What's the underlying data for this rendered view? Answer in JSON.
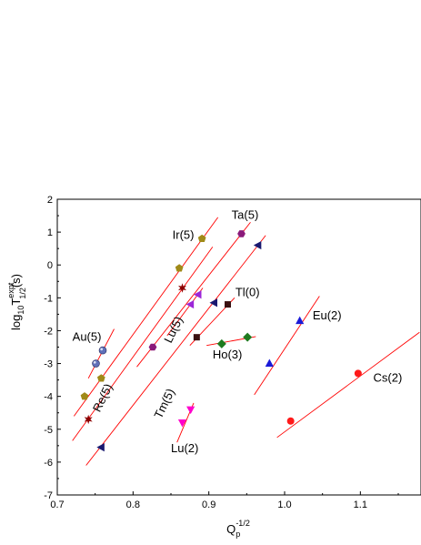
{
  "chart_data": {
    "type": "scatter",
    "title": "",
    "xlabel": {
      "base": "Q",
      "sub": "p",
      "sup": "-1/2"
    },
    "ylabel": {
      "pre": "log",
      "pre_sub": "10",
      "main": "T",
      "sup": "expt",
      "sub": "1/2",
      "post": "(s)"
    },
    "xlim": [
      0.7,
      1.18
    ],
    "ylim": [
      -7,
      2
    ],
    "xticks": [
      "0.7",
      "0.8",
      "0.9",
      "1.0",
      "1.1"
    ],
    "xtick_values": [
      0.7,
      0.8,
      0.9,
      1.0,
      1.1
    ],
    "yticks": [
      "-7",
      "-6",
      "-5",
      "-4",
      "-3",
      "-2",
      "-1",
      "0",
      "1",
      "2"
    ],
    "ytick_values": [
      -7,
      -6,
      -5,
      -4,
      -3,
      -2,
      -1,
      0,
      1,
      2
    ],
    "grid": false,
    "legend": "none",
    "line_color": "#ff0000",
    "series": [
      {
        "name": "Au(5)",
        "marker": "sphere",
        "color": "#6070b8",
        "points": [
          [
            0.751,
            -3.0
          ],
          [
            0.76,
            -2.6
          ]
        ],
        "fit": [
          [
            0.741,
            -3.45
          ],
          [
            0.775,
            -1.95
          ]
        ]
      },
      {
        "name": "Ir(5)",
        "marker": "pentagon",
        "color": "#a08a18",
        "points": [
          [
            0.736,
            -4.0
          ],
          [
            0.758,
            -3.45
          ],
          [
            0.861,
            -0.1
          ],
          [
            0.891,
            0.8
          ]
        ],
        "fit": [
          [
            0.722,
            -4.6
          ],
          [
            0.912,
            1.45
          ]
        ]
      },
      {
        "name": "Ta(5)",
        "marker": "hexagon",
        "color": "#8a1a7a",
        "points": [
          [
            0.826,
            -2.5
          ],
          [
            0.943,
            0.95
          ]
        ],
        "fit": [
          [
            0.805,
            -3.1
          ],
          [
            0.955,
            1.3
          ]
        ]
      },
      {
        "name": "Re(5)",
        "marker": "star",
        "color": "#8b0000",
        "points": [
          [
            0.741,
            -4.7
          ],
          [
            0.865,
            -0.7
          ]
        ],
        "fit": [
          [
            0.72,
            -5.35
          ],
          [
            0.905,
            0.55
          ]
        ]
      },
      {
        "name": "Lu(5)",
        "marker": "triangle-left",
        "color": "#191970",
        "points": [
          [
            0.758,
            -5.55
          ],
          [
            0.907,
            -1.15
          ],
          [
            0.965,
            0.6
          ]
        ],
        "fit": [
          [
            0.738,
            -6.1
          ],
          [
            0.975,
            0.9
          ]
        ]
      },
      {
        "name": "Tm(5)",
        "marker": "triangle-left",
        "color": "#9c27d8",
        "points": [
          [
            0.876,
            -1.2
          ],
          [
            0.886,
            -0.9
          ]
        ],
        "fit": [
          [
            0.845,
            -2.15
          ],
          [
            0.892,
            -0.7
          ]
        ]
      },
      {
        "name": "Tl(0)",
        "marker": "square",
        "color": "#3a1010",
        "points": [
          [
            0.884,
            -2.2
          ],
          [
            0.925,
            -1.2
          ]
        ],
        "fit": [
          [
            0.875,
            -2.45
          ],
          [
            0.934,
            -1.0
          ]
        ]
      },
      {
        "name": "Ho(3)",
        "marker": "diamond",
        "color": "#1f7a1f",
        "points": [
          [
            0.917,
            -2.4
          ],
          [
            0.951,
            -2.2
          ]
        ],
        "fit": [
          [
            0.897,
            -2.45
          ],
          [
            0.962,
            -2.18
          ]
        ]
      },
      {
        "name": "Eu(2)",
        "marker": "triangle-up",
        "color": "#1a1ad8",
        "points": [
          [
            0.98,
            -3.0
          ],
          [
            1.02,
            -1.7
          ]
        ],
        "fit": [
          [
            0.96,
            -3.95
          ],
          [
            1.046,
            -0.95
          ]
        ]
      },
      {
        "name": "Cs(2)",
        "marker": "circle",
        "color": "#ff1a1a",
        "points": [
          [
            1.008,
            -4.75
          ],
          [
            1.097,
            -3.3
          ]
        ],
        "fit": [
          [
            0.99,
            -5.25
          ],
          [
            1.178,
            -2.05
          ]
        ]
      },
      {
        "name": "Lu(2)",
        "marker": "triangle-down",
        "color": "#ff00cc",
        "points": [
          [
            0.865,
            -4.8
          ],
          [
            0.876,
            -4.4
          ]
        ],
        "fit": [
          [
            0.858,
            -5.4
          ],
          [
            0.88,
            -4.2
          ]
        ]
      }
    ],
    "annotations": [
      {
        "text": "Au(5)",
        "x": 0.72,
        "y": -2.3,
        "rotate": 0
      },
      {
        "text": "Ir(5)",
        "x": 0.852,
        "y": 0.8,
        "rotate": 0
      },
      {
        "text": "Ta(5)",
        "x": 0.93,
        "y": 1.4,
        "rotate": 0
      },
      {
        "text": "Re(5)",
        "x": 0.756,
        "y": -4.5,
        "rotate": -64
      },
      {
        "text": "Lu(5)",
        "x": 0.85,
        "y": -2.4,
        "rotate": -64
      },
      {
        "text": "Tm(5)",
        "x": 0.837,
        "y": -4.7,
        "rotate": -64
      },
      {
        "text": "Tl(0)",
        "x": 0.935,
        "y": -0.95,
        "rotate": 0
      },
      {
        "text": "Ho(3)",
        "x": 0.905,
        "y": -2.85,
        "rotate": 0
      },
      {
        "text": "Eu(2)",
        "x": 1.037,
        "y": -1.65,
        "rotate": 0
      },
      {
        "text": "Cs(2)",
        "x": 1.117,
        "y": -3.55,
        "rotate": 0
      },
      {
        "text": "Lu(2)",
        "x": 0.85,
        "y": -5.7,
        "rotate": 0
      }
    ]
  }
}
